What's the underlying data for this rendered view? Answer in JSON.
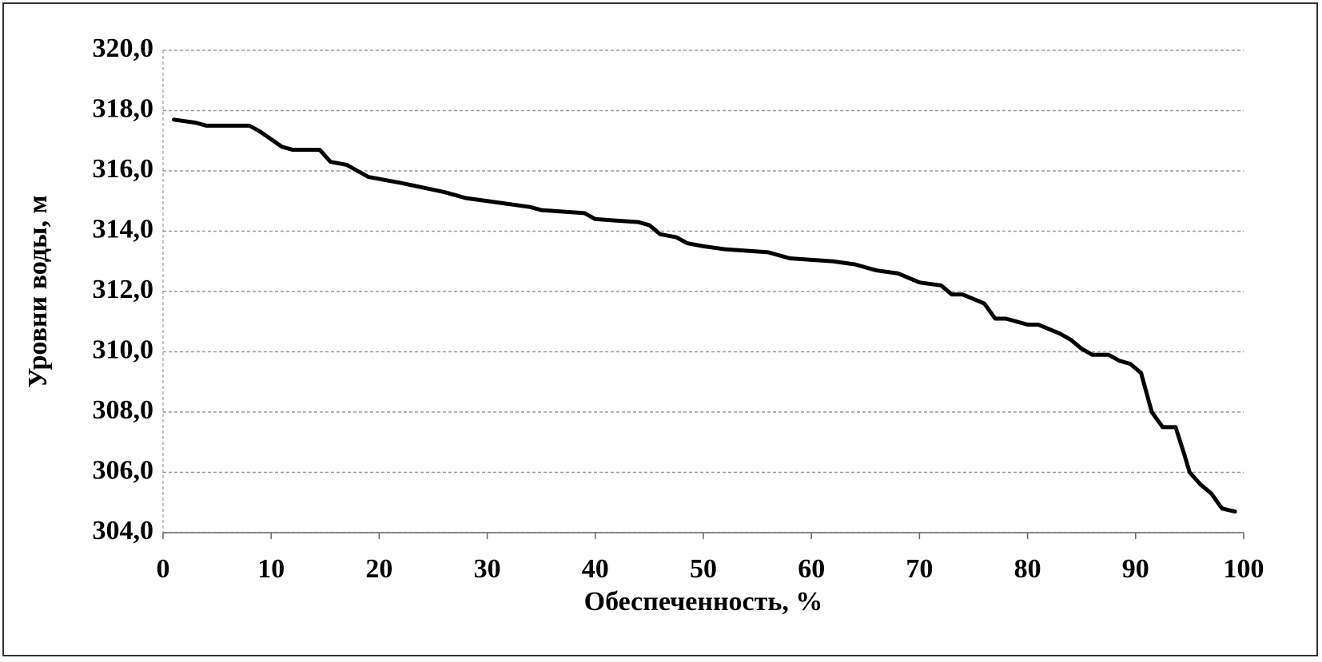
{
  "chart_data": {
    "type": "line",
    "x_label": "Обеспеченность, %",
    "y_label": "Уровни воды, м",
    "x": [
      1,
      3,
      4,
      8,
      9,
      11,
      12,
      14.5,
      15.5,
      17,
      18,
      19,
      22,
      26,
      27,
      28,
      30,
      32,
      34,
      35,
      39,
      40,
      44,
      45,
      46,
      47.5,
      48.5,
      50,
      52,
      56,
      58,
      62,
      64,
      66,
      68,
      70,
      72,
      73,
      74,
      76,
      77,
      78,
      80,
      81,
      83,
      84,
      85,
      86,
      87.5,
      88.5,
      89.5,
      90.5,
      91.5,
      92.5,
      93.7,
      94.5,
      95,
      96,
      97,
      98,
      99.2
    ],
    "values": [
      317.7,
      317.6,
      317.5,
      317.5,
      317.3,
      316.8,
      316.7,
      316.7,
      316.3,
      316.2,
      316.0,
      315.8,
      315.6,
      315.3,
      315.2,
      315.1,
      315.0,
      314.9,
      314.8,
      314.7,
      314.6,
      314.4,
      314.3,
      314.2,
      313.9,
      313.8,
      313.6,
      313.5,
      313.4,
      313.3,
      313.1,
      313.0,
      312.9,
      312.7,
      312.6,
      312.3,
      312.2,
      311.9,
      311.9,
      311.6,
      311.1,
      311.1,
      310.9,
      310.9,
      310.6,
      310.4,
      310.1,
      309.9,
      309.9,
      309.7,
      309.6,
      309.3,
      308.0,
      307.5,
      307.5,
      306.6,
      306.0,
      305.6,
      305.3,
      304.8,
      304.7
    ],
    "color": "#000000",
    "xlim": [
      0,
      100
    ],
    "xticks": [
      0,
      10,
      20,
      30,
      40,
      50,
      60,
      70,
      80,
      90,
      100
    ],
    "ylim": [
      304,
      320
    ],
    "yticks": [
      {
        "value": 304,
        "label": "304,0"
      },
      {
        "value": 306,
        "label": "306,0"
      },
      {
        "value": 308,
        "label": "308,0"
      },
      {
        "value": 310,
        "label": "310,0"
      },
      {
        "value": 312,
        "label": "312,0"
      },
      {
        "value": 314,
        "label": "314,0"
      },
      {
        "value": 316,
        "label": "316,0"
      },
      {
        "value": 318,
        "label": "318,0"
      },
      {
        "value": 320,
        "label": "320,0"
      }
    ],
    "grid": true
  }
}
